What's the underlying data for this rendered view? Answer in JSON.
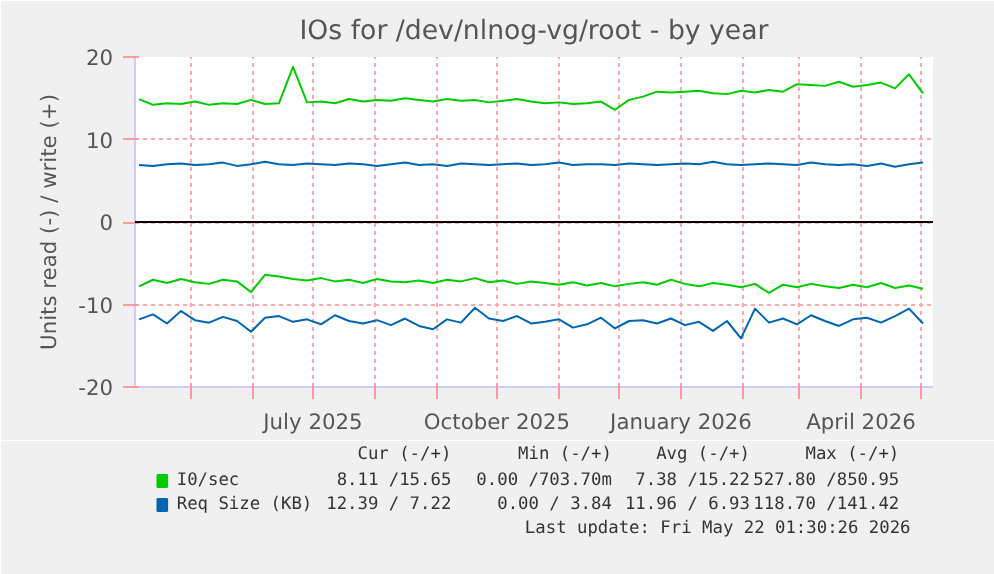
{
  "chart_data": {
    "type": "line",
    "title": "IOs for /dev/nlnog-vg/root - by year",
    "ylabel": "Units read (-) / write (+)",
    "x": [
      "2025-04-05",
      "2025-04-12",
      "2025-04-19",
      "2025-04-26",
      "2025-05-03",
      "2025-05-10",
      "2025-05-17",
      "2025-05-24",
      "2025-05-31",
      "2025-06-07",
      "2025-06-14",
      "2025-06-21",
      "2025-06-28",
      "2025-07-05",
      "2025-07-12",
      "2025-07-19",
      "2025-07-26",
      "2025-08-02",
      "2025-08-09",
      "2025-08-16",
      "2025-08-23",
      "2025-08-30",
      "2025-09-06",
      "2025-09-13",
      "2025-09-20",
      "2025-09-27",
      "2025-10-04",
      "2025-10-11",
      "2025-10-18",
      "2025-10-25",
      "2025-11-01",
      "2025-11-08",
      "2025-11-15",
      "2025-11-22",
      "2025-11-29",
      "2025-12-06",
      "2025-12-13",
      "2025-12-20",
      "2025-12-27",
      "2026-01-03",
      "2026-01-10",
      "2026-01-17",
      "2026-01-24",
      "2026-01-31",
      "2026-02-07",
      "2026-02-14",
      "2026-02-21",
      "2026-02-28",
      "2026-03-07",
      "2026-03-14",
      "2026-03-21",
      "2026-03-28",
      "2026-04-04",
      "2026-04-11",
      "2026-04-18",
      "2026-04-25",
      "2026-05-02"
    ],
    "series": [
      {
        "name": "I0/sec",
        "color": "#00cc00",
        "values": [
          14.9,
          14.2,
          14.4,
          14.3,
          14.6,
          14.2,
          14.4,
          14.3,
          14.8,
          14.3,
          14.4,
          18.8,
          14.5,
          14.6,
          14.4,
          14.9,
          14.6,
          14.8,
          14.7,
          15.0,
          14.8,
          14.6,
          14.9,
          14.7,
          14.8,
          14.5,
          14.7,
          14.9,
          14.6,
          14.4,
          14.5,
          14.3,
          14.4,
          14.6,
          13.6,
          14.8,
          15.2,
          15.8,
          15.7,
          15.8,
          15.9,
          15.6,
          15.5,
          15.9,
          15.7,
          16.0,
          15.8,
          16.7,
          16.6,
          16.5,
          17.0,
          16.4,
          16.6,
          16.9,
          16.2,
          17.9,
          15.6
        ]
      },
      {
        "color": "#00cc00",
        "values": [
          -7.8,
          -7.0,
          -7.4,
          -6.9,
          -7.3,
          -7.5,
          -7.0,
          -7.2,
          -8.5,
          -6.4,
          -6.6,
          -6.9,
          -7.1,
          -6.8,
          -7.2,
          -7.0,
          -7.4,
          -6.9,
          -7.2,
          -7.3,
          -7.1,
          -7.4,
          -7.0,
          -7.2,
          -6.8,
          -7.3,
          -7.1,
          -7.5,
          -7.2,
          -7.4,
          -7.6,
          -7.3,
          -7.7,
          -7.4,
          -7.8,
          -7.5,
          -7.3,
          -7.6,
          -7.0,
          -7.5,
          -7.8,
          -7.4,
          -7.6,
          -7.9,
          -7.5,
          -8.6,
          -7.6,
          -7.9,
          -7.5,
          -7.8,
          -8.0,
          -7.6,
          -7.9,
          -7.4,
          -8.0,
          -7.7,
          -8.1
        ]
      },
      {
        "name": "Req Size (KB)",
        "color": "#0066b3",
        "values": [
          6.9,
          6.8,
          7.0,
          7.1,
          6.9,
          7.0,
          7.2,
          6.8,
          7.0,
          7.3,
          7.0,
          6.9,
          7.1,
          7.0,
          6.9,
          7.1,
          7.0,
          6.8,
          7.0,
          7.2,
          6.9,
          7.0,
          6.8,
          7.1,
          7.0,
          6.9,
          7.0,
          7.1,
          6.9,
          7.0,
          7.2,
          6.9,
          7.0,
          7.0,
          6.9,
          7.1,
          7.0,
          6.9,
          7.0,
          7.1,
          7.0,
          7.3,
          7.0,
          6.9,
          7.0,
          7.1,
          7.0,
          6.9,
          7.2,
          7.0,
          6.9,
          7.0,
          6.8,
          7.1,
          6.7,
          7.0,
          7.2
        ]
      },
      {
        "color": "#0066b3",
        "values": [
          -11.8,
          -11.2,
          -12.3,
          -10.8,
          -11.9,
          -12.2,
          -11.5,
          -12.0,
          -13.3,
          -11.6,
          -11.4,
          -12.1,
          -11.8,
          -12.4,
          -11.3,
          -12.0,
          -12.3,
          -11.9,
          -12.5,
          -11.7,
          -12.6,
          -13.0,
          -11.8,
          -12.2,
          -10.4,
          -11.7,
          -12.0,
          -11.4,
          -12.3,
          -12.1,
          -11.8,
          -12.8,
          -12.4,
          -11.6,
          -12.9,
          -12.0,
          -11.9,
          -12.3,
          -11.7,
          -12.5,
          -12.1,
          -13.2,
          -12.0,
          -14.1,
          -10.5,
          -12.2,
          -11.7,
          -12.4,
          -11.3,
          -12.0,
          -12.6,
          -11.8,
          -11.6,
          -12.2,
          -11.4,
          -10.5,
          -12.3
        ]
      }
    ],
    "xlim": [
      "2025-04-03",
      "2026-05-07"
    ],
    "xticks": [
      {
        "value": "2025-05-01",
        "label": null
      },
      {
        "value": "2025-06-01",
        "label": null
      },
      {
        "value": "2025-07-01",
        "label": "July 2025"
      },
      {
        "value": "2025-08-01",
        "label": null
      },
      {
        "value": "2025-09-01",
        "label": null
      },
      {
        "value": "2025-10-01",
        "label": "October 2025"
      },
      {
        "value": "2025-11-01",
        "label": null
      },
      {
        "value": "2025-12-01",
        "label": null
      },
      {
        "value": "2026-01-01",
        "label": "January 2026"
      },
      {
        "value": "2026-02-01",
        "label": null
      },
      {
        "value": "2026-03-01",
        "label": null
      },
      {
        "value": "2026-04-01",
        "label": "April 2026"
      },
      {
        "value": "2026-05-01",
        "label": null
      }
    ],
    "ylim": [
      -20,
      20
    ],
    "yticks": [
      -20,
      -10,
      0,
      10,
      20
    ],
    "ref_lines": [
      {
        "axis": "y",
        "value": 0,
        "color": "#000000"
      }
    ],
    "grid": true,
    "legend": "bottom",
    "line_style": "solid",
    "marker": "none",
    "annotations": [
      "Cur (-/+)",
      "Min (-/+)",
      "Avg (-/+)",
      "Max (-/+)",
      "8.11 /15.65",
      "0.00 /703.70m",
      "7.38 /15.22",
      "527.80 /850.95",
      "12.39 / 7.22",
      "0.00 / 3.84",
      "11.96 / 6.93",
      "118.70 /141.42",
      "Last update: Fri May 22 01:30:26 2026"
    ]
  }
}
